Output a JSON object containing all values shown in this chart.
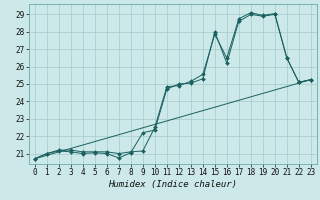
{
  "title": "",
  "xlabel": "Humidex (Indice chaleur)",
  "xlim": [
    -0.5,
    23.5
  ],
  "ylim": [
    20.4,
    29.6
  ],
  "xticks": [
    0,
    1,
    2,
    3,
    4,
    5,
    6,
    7,
    8,
    9,
    10,
    11,
    12,
    13,
    14,
    15,
    16,
    17,
    18,
    19,
    20,
    21,
    22,
    23
  ],
  "yticks": [
    21,
    22,
    23,
    24,
    25,
    26,
    27,
    28,
    29
  ],
  "background_color": "#cce8e8",
  "grid_color": "#aacece",
  "line_color": "#1a6060",
  "line1_x": [
    0,
    1,
    2,
    3,
    4,
    5,
    6,
    7,
    8,
    9,
    10,
    11,
    12,
    13,
    14,
    15,
    16,
    17,
    18,
    19,
    20,
    21,
    22,
    23
  ],
  "line1_y": [
    20.7,
    21.0,
    21.15,
    21.1,
    21.0,
    21.05,
    21.0,
    20.75,
    21.05,
    22.2,
    22.35,
    24.7,
    25.0,
    25.05,
    25.3,
    28.0,
    26.2,
    28.6,
    29.0,
    28.9,
    29.0,
    26.5,
    25.1,
    25.25
  ],
  "line2_x": [
    0,
    1,
    2,
    3,
    4,
    5,
    6,
    7,
    8,
    9,
    10,
    11,
    12,
    13,
    14,
    15,
    16,
    17,
    18,
    19,
    20,
    21,
    22,
    23
  ],
  "line2_y": [
    20.7,
    21.0,
    21.2,
    21.2,
    21.1,
    21.1,
    21.1,
    21.0,
    21.1,
    21.15,
    22.5,
    24.85,
    24.9,
    25.15,
    25.55,
    27.85,
    26.5,
    28.75,
    29.1,
    28.95,
    29.05,
    26.5,
    25.1,
    25.25
  ],
  "line3_x": [
    0,
    23
  ],
  "line3_y": [
    20.7,
    25.25
  ],
  "marker": "D",
  "markersize": 2.0,
  "linewidth": 0.7,
  "tick_fontsize": 5.5,
  "xlabel_fontsize": 6.5
}
